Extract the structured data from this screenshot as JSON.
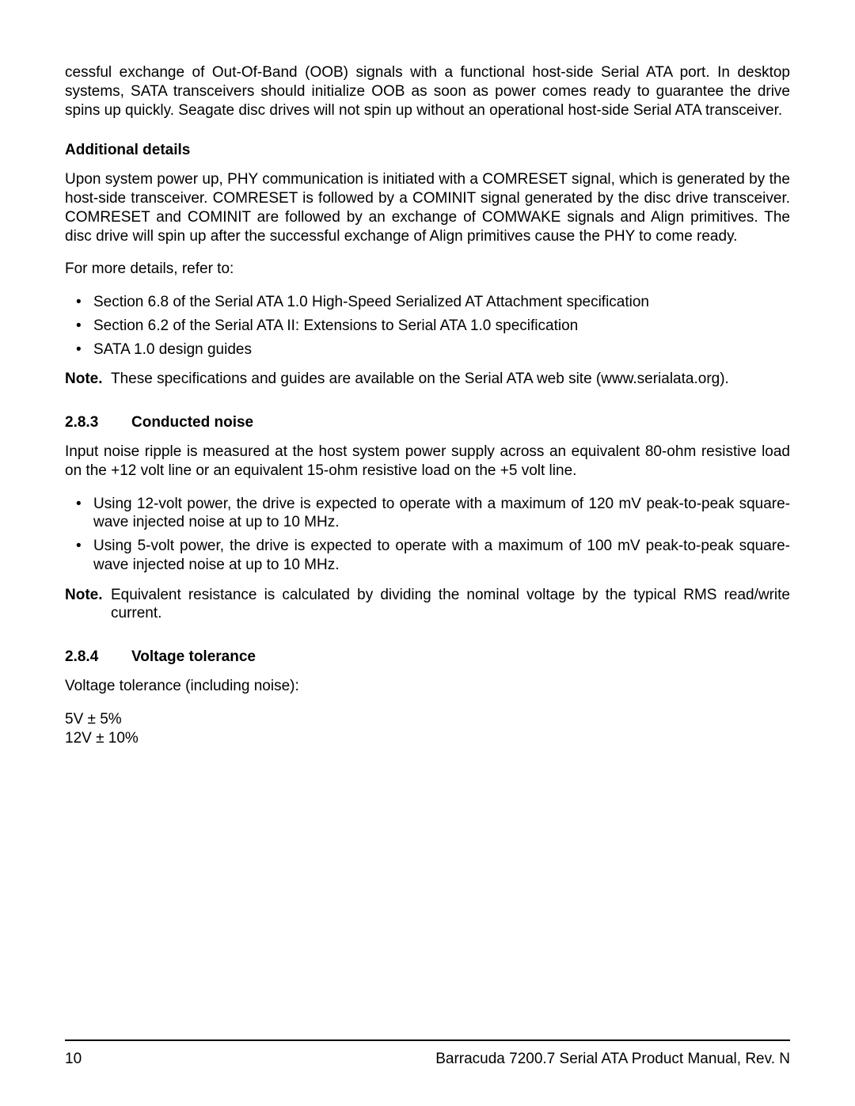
{
  "intro_para": "cessful exchange of Out-Of-Band (OOB) signals with a functional host-side Serial ATA port. In desktop systems, SATA transceivers should initialize OOB as soon as power comes ready to guarantee the drive spins up quickly. Seagate disc drives will not spin up without an operational host-side Serial ATA transceiver.",
  "additional_details_heading": "Additional details",
  "additional_details_para": "Upon system power up, PHY communication is initiated with a COMRESET signal, which is generated by the host-side transceiver. COMRESET is followed by a COMINIT signal generated by the disc drive transceiver. COMRESET and COMINIT are followed by an exchange of COMWAKE signals and Align primitives. The disc drive will spin up after the successful exchange of Align primitives cause the PHY to come ready.",
  "more_details_intro": "For more details, refer to:",
  "more_details_bullets": [
    "Section 6.8 of the Serial ATA 1.0 High-Speed Serialized AT Attachment specification",
    "Section 6.2 of the Serial ATA II: Extensions to Serial ATA 1.0 specification",
    "SATA 1.0 design guides"
  ],
  "note_label": "Note.",
  "note1_body": "These specifications and guides are available on the Serial ATA web site (www.serialata.org).",
  "sec_283_num": "2.8.3",
  "sec_283_title": "Conducted noise",
  "sec_283_para": "Input noise ripple is measured at the host system power supply across an equivalent 80-ohm resistive load on the +12 volt line or an equivalent 15-ohm resistive load on the +5 volt line.",
  "sec_283_bullets": [
    "Using 12-volt power, the drive is expected to operate with a maximum of 120 mV peak-to-peak square-wave injected noise at up to 10 MHz.",
    "Using 5-volt power, the drive is expected to operate with a maximum of 100 mV peak-to-peak square-wave injected noise at up to 10 MHz."
  ],
  "note2_body": "Equivalent resistance is calculated by dividing the nominal voltage by the typical RMS read/write current.",
  "sec_284_num": "2.8.4",
  "sec_284_title": "Voltage tolerance",
  "sec_284_para": "Voltage tolerance (including noise):",
  "tol_5v": "5V ± 5%",
  "tol_12v": "12V ± 10%",
  "footer_page": "10",
  "footer_title": "Barracuda 7200.7 Serial ATA Product Manual, Rev. N"
}
